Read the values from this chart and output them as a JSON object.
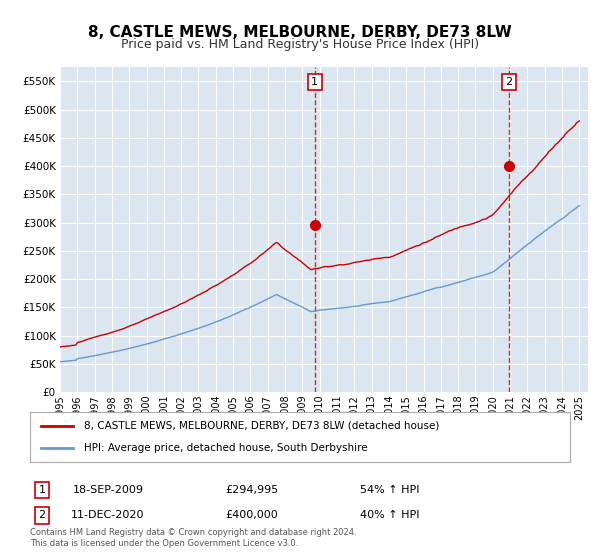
{
  "title": "8, CASTLE MEWS, MELBOURNE, DERBY, DE73 8LW",
  "subtitle": "Price paid vs. HM Land Registry's House Price Index (HPI)",
  "title_fontsize": 11,
  "subtitle_fontsize": 9,
  "xlabel": "",
  "ylabel": "",
  "ylim": [
    0,
    575000
  ],
  "xlim_start": 1995.0,
  "xlim_end": 2025.5,
  "yticks": [
    0,
    50000,
    100000,
    150000,
    200000,
    250000,
    300000,
    350000,
    400000,
    450000,
    500000,
    550000
  ],
  "ytick_labels": [
    "£0",
    "£50K",
    "£100K",
    "£150K",
    "£200K",
    "£250K",
    "£300K",
    "£350K",
    "£400K",
    "£450K",
    "£500K",
    "£550K"
  ],
  "xticks": [
    1995,
    1996,
    1997,
    1998,
    1999,
    2000,
    2001,
    2002,
    2003,
    2004,
    2005,
    2006,
    2007,
    2008,
    2009,
    2010,
    2011,
    2012,
    2013,
    2014,
    2015,
    2016,
    2017,
    2018,
    2019,
    2020,
    2021,
    2022,
    2023,
    2024,
    2025
  ],
  "red_line_color": "#cc0000",
  "blue_line_color": "#6699cc",
  "background_color": "#dce6f1",
  "plot_bg_color": "#dce6f1",
  "grid_color": "#ffffff",
  "marker1_date": 2009.72,
  "marker1_value": 294995,
  "marker1_label": "1",
  "marker2_date": 2020.94,
  "marker2_value": 400000,
  "marker2_label": "2",
  "legend_line1": "8, CASTLE MEWS, MELBOURNE, DERBY, DE73 8LW (detached house)",
  "legend_line2": "HPI: Average price, detached house, South Derbyshire",
  "annotation1_num": "1",
  "annotation1_date": "18-SEP-2009",
  "annotation1_price": "£294,995",
  "annotation1_hpi": "54% ↑ HPI",
  "annotation2_num": "2",
  "annotation2_date": "11-DEC-2020",
  "annotation2_price": "£400,000",
  "annotation2_hpi": "40% ↑ HPI",
  "footer": "Contains HM Land Registry data © Crown copyright and database right 2024.\nThis data is licensed under the Open Government Licence v3.0."
}
